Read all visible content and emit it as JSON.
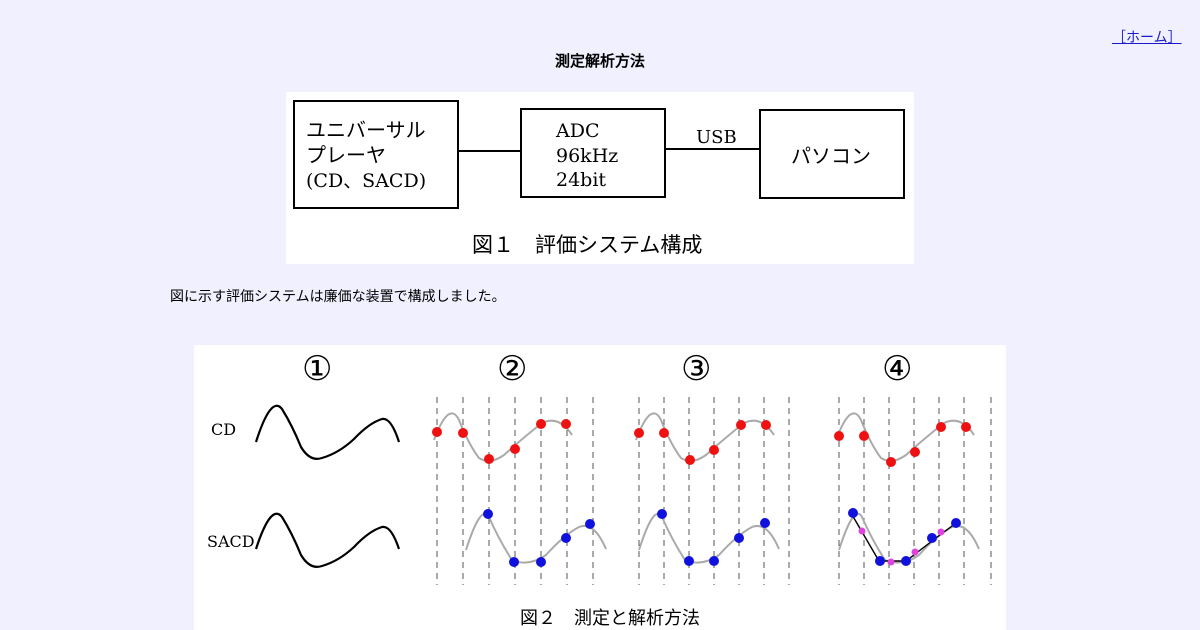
{
  "nav": {
    "home_link": "［ホーム］"
  },
  "page_title": "測定解析方法",
  "figure1": {
    "blocks": {
      "player": [
        "ユニバーサル",
        "プレーヤ",
        "(CD、SACD)"
      ],
      "adc": [
        "ADC",
        "96kHz",
        "24bit"
      ],
      "link_label": "USB",
      "pc": "パソコン"
    },
    "caption": "図１　評価システム構成"
  },
  "description": "図に示す評価システムは廉価な装置で構成しました。",
  "figure2": {
    "panel_labels": [
      "①",
      "②",
      "③",
      "④"
    ],
    "row_labels": [
      "CD",
      "SACD"
    ],
    "caption": "図２　測定と解析方法",
    "colors": {
      "cd_samples": "#ee1111",
      "sacd_samples": "#1111dd",
      "interp_samples": "#dd44dd"
    }
  }
}
